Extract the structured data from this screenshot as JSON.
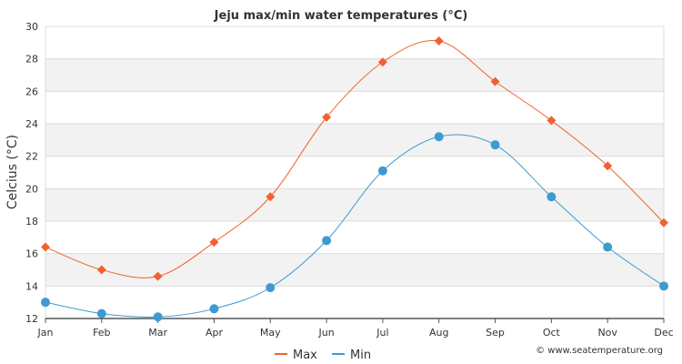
{
  "chart_data": {
    "type": "line",
    "title": "Jeju max/min water temperatures (°C)",
    "xlabel": "",
    "ylabel": "Celcius (°C)",
    "categories": [
      "Jan",
      "Feb",
      "Mar",
      "Apr",
      "May",
      "Jun",
      "Jul",
      "Aug",
      "Sep",
      "Oct",
      "Nov",
      "Dec"
    ],
    "ylim": [
      12,
      30
    ],
    "yticks": [
      12,
      14,
      16,
      18,
      20,
      22,
      24,
      26,
      28,
      30
    ],
    "grid": true,
    "legend_position": "bottom-center",
    "series": [
      {
        "name": "Max",
        "color": "#f0622d",
        "marker": "diamond",
        "values": [
          16.4,
          15.0,
          14.6,
          16.7,
          19.5,
          24.4,
          27.8,
          29.1,
          26.6,
          24.2,
          21.4,
          17.9
        ]
      },
      {
        "name": "Min",
        "color": "#3d9bd0",
        "marker": "circle",
        "values": [
          13.0,
          12.3,
          12.1,
          12.6,
          13.9,
          16.8,
          21.1,
          23.2,
          22.7,
          19.5,
          16.4,
          14.0
        ]
      }
    ],
    "credit": "© www.seatemperature.org"
  }
}
